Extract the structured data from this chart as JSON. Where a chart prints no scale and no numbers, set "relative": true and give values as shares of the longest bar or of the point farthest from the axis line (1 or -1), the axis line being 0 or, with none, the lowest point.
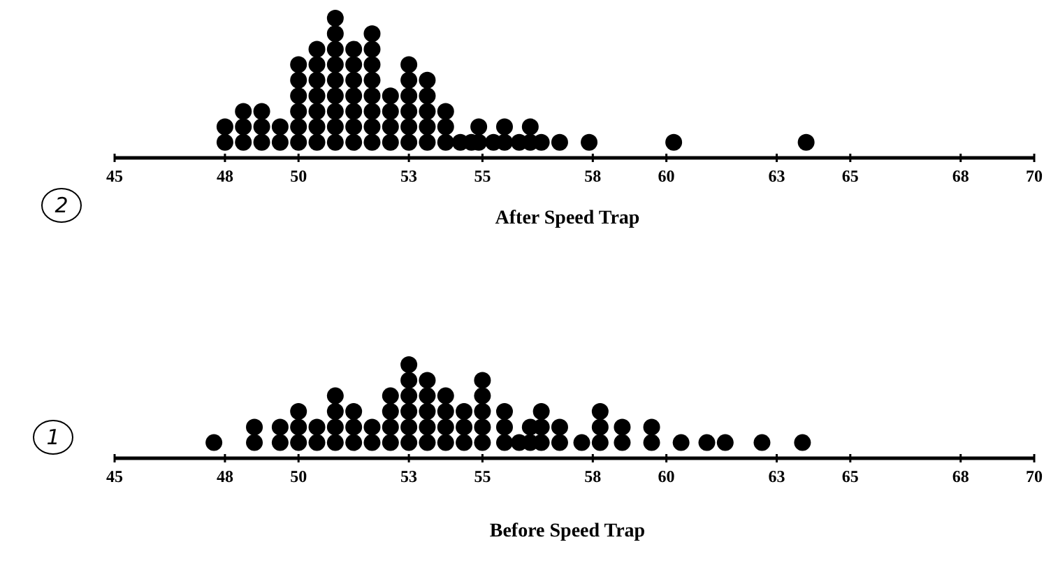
{
  "chart_data": [
    {
      "type": "scatter",
      "relative": true,
      "xlabel": "After Speed Trap",
      "annotations": [
        "2"
      ],
      "marker": "circle",
      "grid": false,
      "tick_labels": "x",
      "xlim": [
        45,
        70
      ],
      "xticks": [
        45,
        48,
        50,
        53,
        55,
        58,
        60,
        63,
        65,
        68,
        70
      ],
      "series": [
        {
          "color": "#000000",
          "x": [
            48,
            48,
            48.5,
            48.5,
            48.5,
            49,
            49,
            49,
            49.5,
            49.5,
            50,
            50,
            50,
            50,
            50,
            50,
            50.5,
            50.5,
            50.5,
            50.5,
            50.5,
            50.5,
            50.5,
            51,
            51,
            51,
            51,
            51,
            51,
            51,
            51,
            51,
            51.5,
            51.5,
            51.5,
            51.5,
            51.5,
            51.5,
            51.5,
            52,
            52,
            52,
            52,
            52,
            52,
            52,
            52,
            52.5,
            52.5,
            52.5,
            52.5,
            53,
            53,
            53,
            53,
            53,
            53,
            53.5,
            53.5,
            53.5,
            53.5,
            53.5,
            54,
            54,
            54,
            54.4,
            54.7,
            54.9,
            54.9,
            55.3,
            55.6,
            55.6,
            56,
            56.3,
            56.3,
            56.6,
            57.1,
            57.9,
            60.2,
            63.8
          ],
          "values": [
            0.111,
            0.222,
            0.111,
            0.222,
            0.333,
            0.111,
            0.222,
            0.333,
            0.111,
            0.222,
            0.111,
            0.222,
            0.333,
            0.444,
            0.556,
            0.667,
            0.111,
            0.222,
            0.333,
            0.444,
            0.556,
            0.667,
            0.778,
            0.111,
            0.222,
            0.333,
            0.444,
            0.556,
            0.667,
            0.778,
            0.889,
            1,
            0.111,
            0.222,
            0.333,
            0.444,
            0.556,
            0.667,
            0.778,
            0.111,
            0.222,
            0.333,
            0.444,
            0.556,
            0.667,
            0.778,
            0.889,
            0.111,
            0.222,
            0.333,
            0.444,
            0.111,
            0.222,
            0.333,
            0.444,
            0.556,
            0.667,
            0.111,
            0.222,
            0.333,
            0.444,
            0.556,
            0.111,
            0.222,
            0.333,
            0.111,
            0.111,
            0.111,
            0.222,
            0.111,
            0.111,
            0.222,
            0.111,
            0.111,
            0.222,
            0.111,
            0.111,
            0.111,
            0.111,
            0.111
          ]
        }
      ]
    },
    {
      "type": "scatter",
      "relative": true,
      "xlabel": "Before Speed Trap",
      "annotations": [
        "1"
      ],
      "marker": "circle",
      "grid": false,
      "tick_labels": "x",
      "xlim": [
        45,
        70
      ],
      "xticks": [
        45,
        48,
        50,
        53,
        55,
        58,
        60,
        63,
        65,
        68,
        70
      ],
      "series": [
        {
          "color": "#000000",
          "x": [
            47.7,
            48.8,
            48.8,
            49.5,
            49.5,
            50,
            50,
            50,
            50.5,
            50.5,
            51,
            51,
            51,
            51,
            51.5,
            51.5,
            51.5,
            52,
            52,
            52.5,
            52.5,
            52.5,
            52.5,
            53,
            53,
            53,
            53,
            53,
            53,
            53.5,
            53.5,
            53.5,
            53.5,
            53.5,
            54,
            54,
            54,
            54,
            54.5,
            54.5,
            54.5,
            55,
            55,
            55,
            55,
            55,
            55.6,
            55.6,
            55.6,
            56,
            56.3,
            56.3,
            56.6,
            56.6,
            56.6,
            57.1,
            57.1,
            57.7,
            58.2,
            58.2,
            58.2,
            58.8,
            58.8,
            59.6,
            59.6,
            60.4,
            61.1,
            61.6,
            62.6,
            63.7
          ],
          "values": [
            0.167,
            0.167,
            0.333,
            0.167,
            0.333,
            0.167,
            0.333,
            0.5,
            0.167,
            0.333,
            0.167,
            0.333,
            0.5,
            0.667,
            0.167,
            0.333,
            0.5,
            0.167,
            0.333,
            0.167,
            0.333,
            0.5,
            0.667,
            0.167,
            0.333,
            0.5,
            0.667,
            0.833,
            1,
            0.167,
            0.333,
            0.5,
            0.667,
            0.833,
            0.167,
            0.333,
            0.5,
            0.667,
            0.167,
            0.333,
            0.5,
            0.167,
            0.333,
            0.5,
            0.667,
            0.833,
            0.167,
            0.333,
            0.5,
            0.167,
            0.167,
            0.333,
            0.167,
            0.333,
            0.5,
            0.167,
            0.333,
            0.167,
            0.167,
            0.333,
            0.5,
            0.167,
            0.333,
            0.167,
            0.333,
            0.167,
            0.167,
            0.167,
            0.167,
            0.167
          ]
        }
      ]
    }
  ]
}
